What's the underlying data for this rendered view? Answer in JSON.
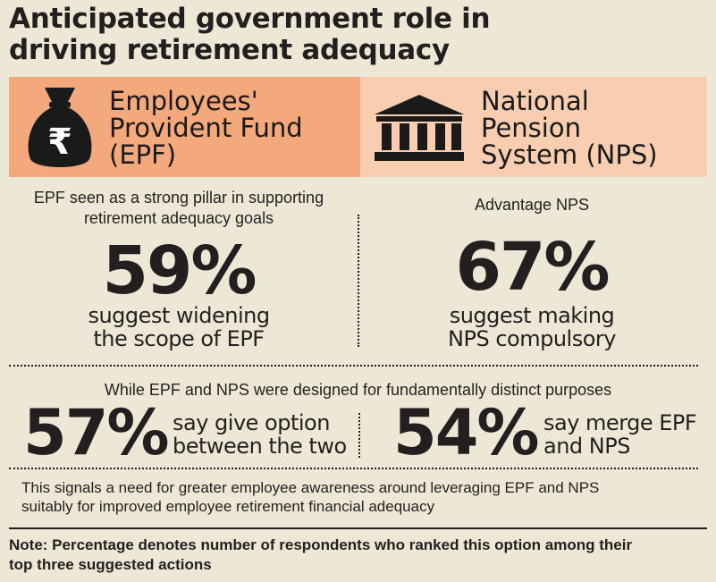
{
  "title": {
    "line1": "Anticipated government role in",
    "line2": "driving retirement adequacy"
  },
  "epf_panel": {
    "icon": "money-bag-rupee-icon",
    "line1": "Employees'",
    "line2": "Provident Fund",
    "line3": "(EPF)"
  },
  "nps_panel": {
    "icon": "government-building-icon",
    "line1": "National",
    "line2": "Pension",
    "line3": "System (NPS)"
  },
  "epf_stat": {
    "sub_line1": "EPF seen as a strong pillar in supporting",
    "sub_line2": "retirement adequacy goals",
    "value": "59%",
    "caption_line1": "suggest widening",
    "caption_line2": "the scope of EPF"
  },
  "nps_stat": {
    "sub_line1": "Advantage NPS",
    "value": "67%",
    "caption_line1": "suggest making",
    "caption_line2": "NPS compulsory"
  },
  "distinct": {
    "heading": "While EPF and NPS were designed for fundamentally distinct purposes",
    "left_value": "57%",
    "left_line1": "say give option",
    "left_line2": "between the two",
    "right_value": "54%",
    "right_line1": "say merge EPF",
    "right_line2": "and NPS"
  },
  "signal": {
    "line1": "This signals a need for greater employee awareness around leveraging EPF and NPS",
    "line2": "suitably for improved employee retirement financial adequacy"
  },
  "note": {
    "line1": "Note: Percentage denotes number of respondents who ranked this option among their",
    "line2": "top three suggested actions"
  },
  "colors": {
    "background": "#ede8d6",
    "epf_panel": "#f4a97c",
    "nps_panel": "#f9cdb0",
    "text": "#231f20"
  }
}
